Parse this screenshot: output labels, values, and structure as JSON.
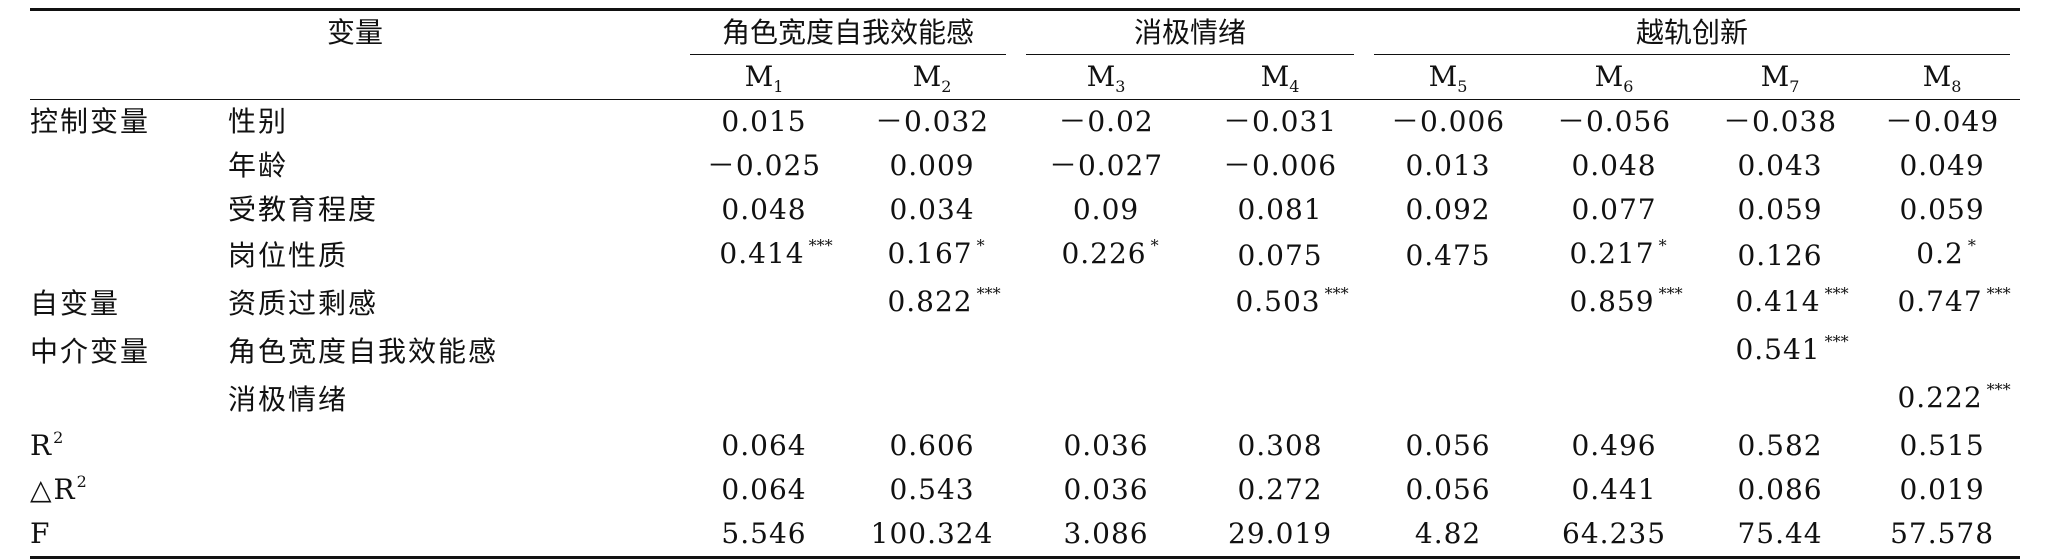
{
  "table": {
    "header": {
      "variable_label": "变量",
      "groups": [
        {
          "label": "角色宽度自我效能感",
          "span": 2
        },
        {
          "label": "消极情绪",
          "span": 2
        },
        {
          "label": "越轨创新",
          "span": 4
        }
      ],
      "models": [
        {
          "base": "M",
          "sub": "1"
        },
        {
          "base": "M",
          "sub": "2"
        },
        {
          "base": "M",
          "sub": "3"
        },
        {
          "base": "M",
          "sub": "4"
        },
        {
          "base": "M",
          "sub": "5"
        },
        {
          "base": "M",
          "sub": "6"
        },
        {
          "base": "M",
          "sub": "7"
        },
        {
          "base": "M",
          "sub": "8"
        }
      ]
    },
    "rows": [
      {
        "category": "控制变量",
        "variable": "性别",
        "cells": [
          {
            "v": "0.015",
            "s": ""
          },
          {
            "v": "－0.032",
            "s": ""
          },
          {
            "v": "－0.02",
            "s": ""
          },
          {
            "v": "－0.031",
            "s": ""
          },
          {
            "v": "－0.006",
            "s": ""
          },
          {
            "v": "－0.056",
            "s": ""
          },
          {
            "v": "－0.038",
            "s": ""
          },
          {
            "v": "－0.049",
            "s": ""
          }
        ]
      },
      {
        "category": "",
        "variable": "年龄",
        "cells": [
          {
            "v": "－0.025",
            "s": ""
          },
          {
            "v": "0.009",
            "s": ""
          },
          {
            "v": "－0.027",
            "s": ""
          },
          {
            "v": "－0.006",
            "s": ""
          },
          {
            "v": "0.013",
            "s": ""
          },
          {
            "v": "0.048",
            "s": ""
          },
          {
            "v": "0.043",
            "s": ""
          },
          {
            "v": "0.049",
            "s": ""
          }
        ]
      },
      {
        "category": "",
        "variable": "受教育程度",
        "cells": [
          {
            "v": "0.048",
            "s": ""
          },
          {
            "v": "0.034",
            "s": ""
          },
          {
            "v": "0.09",
            "s": ""
          },
          {
            "v": "0.081",
            "s": ""
          },
          {
            "v": "0.092",
            "s": ""
          },
          {
            "v": "0.077",
            "s": ""
          },
          {
            "v": "0.059",
            "s": ""
          },
          {
            "v": "0.059",
            "s": ""
          }
        ]
      },
      {
        "category": "",
        "variable": "岗位性质",
        "cells": [
          {
            "v": "0.414",
            "s": "***"
          },
          {
            "v": "0.167",
            "s": "*"
          },
          {
            "v": "0.226",
            "s": "*"
          },
          {
            "v": "0.075",
            "s": ""
          },
          {
            "v": "0.475",
            "s": ""
          },
          {
            "v": "0.217",
            "s": "*"
          },
          {
            "v": "0.126",
            "s": ""
          },
          {
            "v": "0.2",
            "s": "*"
          }
        ]
      },
      {
        "category": "自变量",
        "variable": "资质过剩感",
        "cells": [
          {
            "v": "",
            "s": ""
          },
          {
            "v": "0.822",
            "s": "***"
          },
          {
            "v": "",
            "s": ""
          },
          {
            "v": "0.503",
            "s": "***"
          },
          {
            "v": "",
            "s": ""
          },
          {
            "v": "0.859",
            "s": "***"
          },
          {
            "v": "0.414",
            "s": "***"
          },
          {
            "v": "0.747",
            "s": "***"
          }
        ]
      },
      {
        "category": "中介变量",
        "variable": "角色宽度自我效能感",
        "cells": [
          {
            "v": "",
            "s": ""
          },
          {
            "v": "",
            "s": ""
          },
          {
            "v": "",
            "s": ""
          },
          {
            "v": "",
            "s": ""
          },
          {
            "v": "",
            "s": ""
          },
          {
            "v": "",
            "s": ""
          },
          {
            "v": "0.541",
            "s": "***"
          },
          {
            "v": "",
            "s": ""
          }
        ]
      },
      {
        "category": "",
        "variable": "消极情绪",
        "cells": [
          {
            "v": "",
            "s": ""
          },
          {
            "v": "",
            "s": ""
          },
          {
            "v": "",
            "s": ""
          },
          {
            "v": "",
            "s": ""
          },
          {
            "v": "",
            "s": ""
          },
          {
            "v": "",
            "s": ""
          },
          {
            "v": "",
            "s": ""
          },
          {
            "v": "0.222",
            "s": "***"
          }
        ]
      }
    ],
    "stats": {
      "r2": {
        "base": "R",
        "sup": "2",
        "values": [
          "0.064",
          "0.606",
          "0.036",
          "0.308",
          "0.056",
          "0.496",
          "0.582",
          "0.515"
        ]
      },
      "dr2": {
        "prefix": "△",
        "base": "R",
        "sup": "2",
        "values": [
          "0.064",
          "0.543",
          "0.036",
          "0.272",
          "0.056",
          "0.441",
          "0.086",
          "0.019"
        ]
      },
      "f": {
        "label": "F",
        "values": [
          "5.546",
          "100.324",
          "3.086",
          "29.019",
          "4.82",
          "64.235",
          "75.44",
          "57.578"
        ]
      }
    }
  }
}
